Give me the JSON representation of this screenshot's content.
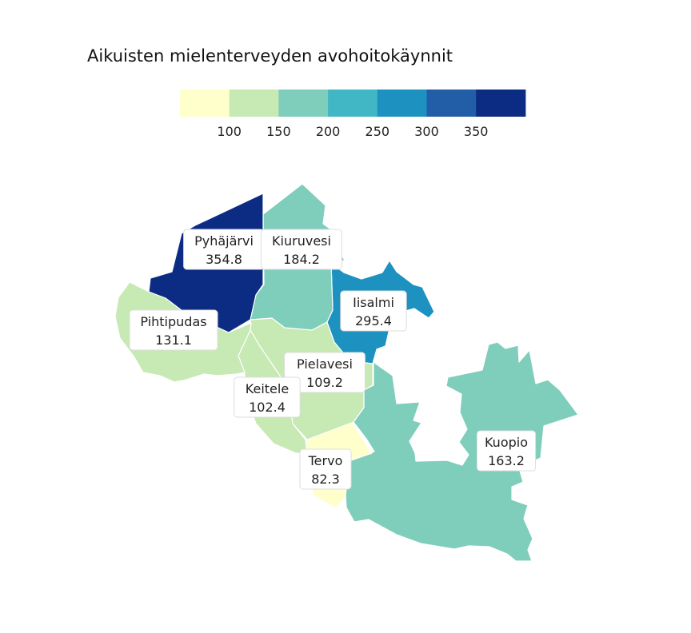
{
  "title": "Aikuisten mielenterveyden avohoitokäynnit",
  "legend": {
    "colors": [
      "#ffffcc",
      "#c7e9b4",
      "#7fcdbb",
      "#41b6c4",
      "#1d91c0",
      "#225ea8",
      "#0c2c84"
    ],
    "ticks": [
      "100",
      "150",
      "200",
      "250",
      "300",
      "350"
    ]
  },
  "regions": [
    {
      "name": "Pyhäjärvi",
      "value": "354.8"
    },
    {
      "name": "Kiuruvesi",
      "value": "184.2"
    },
    {
      "name": "Iisalmi",
      "value": "295.4"
    },
    {
      "name": "Pihtipudas",
      "value": "131.1"
    },
    {
      "name": "Pielavesi",
      "value": "109.2"
    },
    {
      "name": "Keitele",
      "value": "102.4"
    },
    {
      "name": "Tervo",
      "value": "82.3"
    },
    {
      "name": "Kuopio",
      "value": "163.2"
    }
  ]
}
